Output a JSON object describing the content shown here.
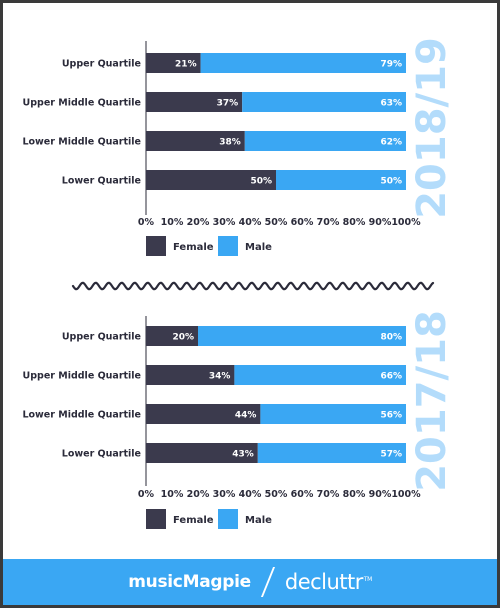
{
  "colors": {
    "female": "#3b3a4d",
    "male": "#3aa7f3",
    "year_text": "#b3dcfb",
    "footer_bg": "#3aa7f3",
    "border": "#3a3a3a",
    "text": "#2b2b3a"
  },
  "chart_data": [
    {
      "type": "bar",
      "orientation": "horizontal",
      "stacked": true,
      "title": "2018/19",
      "categories": [
        "Upper Quartile",
        "Upper Middle Quartile",
        "Lower Middle Quartile",
        "Lower Quartile"
      ],
      "series": [
        {
          "name": "Female",
          "values": [
            21,
            37,
            38,
            50
          ],
          "labels": [
            "21%",
            "37%",
            "38%",
            "50%"
          ]
        },
        {
          "name": "Male",
          "values": [
            79,
            63,
            62,
            50
          ],
          "labels": [
            "79%",
            "63%",
            "62%",
            "50%"
          ]
        }
      ],
      "xlim": [
        0,
        100
      ],
      "x_ticks": [
        "0%",
        "10%",
        "20%",
        "30%",
        "40%",
        "50%",
        "60%",
        "70%",
        "80%",
        "90%",
        "100%"
      ],
      "legend": [
        "Female",
        "Male"
      ],
      "legend_position": "bottom-left",
      "grid": false
    },
    {
      "type": "bar",
      "orientation": "horizontal",
      "stacked": true,
      "title": "2017/18",
      "categories": [
        "Upper Quartile",
        "Upper Middle Quartile",
        "Lower Middle Quartile",
        "Lower Quartile"
      ],
      "series": [
        {
          "name": "Female",
          "values": [
            20,
            34,
            44,
            43
          ],
          "labels": [
            "20%",
            "34%",
            "44%",
            "43%"
          ]
        },
        {
          "name": "Male",
          "values": [
            80,
            66,
            56,
            57
          ],
          "labels": [
            "80%",
            "66%",
            "56%",
            "57%"
          ]
        }
      ],
      "xlim": [
        0,
        100
      ],
      "x_ticks": [
        "0%",
        "10%",
        "20%",
        "30%",
        "40%",
        "50%",
        "60%",
        "70%",
        "80%",
        "90%",
        "100%"
      ],
      "legend": [
        "Female",
        "Male"
      ],
      "legend_position": "bottom-left",
      "grid": false
    }
  ],
  "footer": {
    "brand_left": "musicMagpie",
    "brand_right": "decluttr",
    "brand_right_mark": "TM"
  }
}
